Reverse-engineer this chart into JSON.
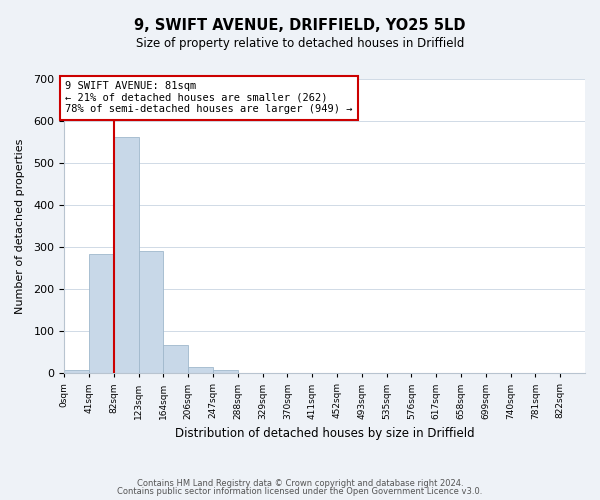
{
  "title": "9, SWIFT AVENUE, DRIFFIELD, YO25 5LD",
  "subtitle": "Size of property relative to detached houses in Driffield",
  "xlabel": "Distribution of detached houses by size in Driffield",
  "ylabel": "Number of detached properties",
  "bar_labels": [
    "0sqm",
    "41sqm",
    "82sqm",
    "123sqm",
    "164sqm",
    "206sqm",
    "247sqm",
    "288sqm",
    "329sqm",
    "370sqm",
    "411sqm",
    "452sqm",
    "493sqm",
    "535sqm",
    "576sqm",
    "617sqm",
    "658sqm",
    "699sqm",
    "740sqm",
    "781sqm",
    "822sqm"
  ],
  "bar_values": [
    7,
    283,
    562,
    291,
    68,
    14,
    8,
    0,
    0,
    0,
    0,
    0,
    0,
    0,
    0,
    0,
    0,
    0,
    0,
    0,
    0
  ],
  "bar_color": "#c8d8e8",
  "bar_edge_color": "#a0b8cc",
  "marker_line_color": "#cc0000",
  "annotation_text": "9 SWIFT AVENUE: 81sqm\n← 21% of detached houses are smaller (262)\n78% of semi-detached houses are larger (949) →",
  "annotation_box_color": "#ffffff",
  "annotation_box_edge": "#cc0000",
  "ylim": [
    0,
    700
  ],
  "yticks": [
    0,
    100,
    200,
    300,
    400,
    500,
    600,
    700
  ],
  "footer_line1": "Contains HM Land Registry data © Crown copyright and database right 2024.",
  "footer_line2": "Contains public sector information licensed under the Open Government Licence v3.0.",
  "background_color": "#eef2f7",
  "plot_bg_color": "#ffffff",
  "grid_color": "#d0dae6"
}
